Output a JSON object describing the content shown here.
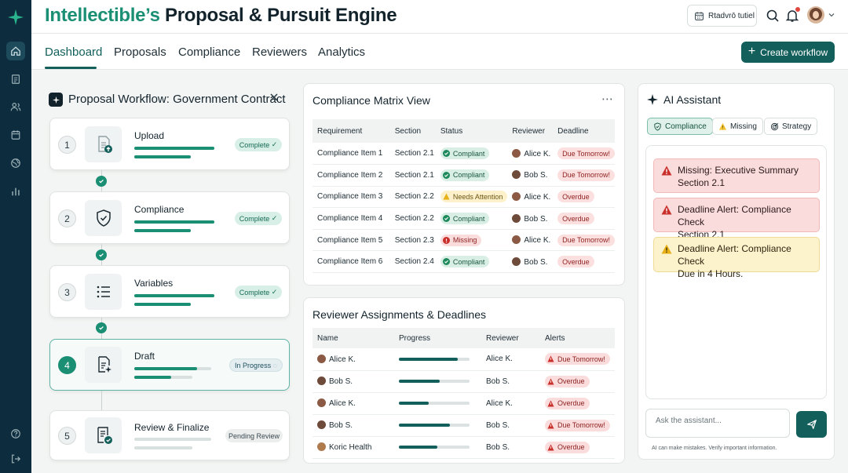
{
  "header": {
    "title_brand": "Intellectible’s",
    "title_rest": "Proposal & Pursuit Engine",
    "calendar_label": "Rtadvrō tutiel"
  },
  "tabs": [
    {
      "label": "Dashboard",
      "active": true
    },
    {
      "label": "Proposals",
      "active": false
    },
    {
      "label": "Compliance",
      "active": false
    },
    {
      "label": "Reviewers",
      "active": false
    },
    {
      "label": "Analytics",
      "active": false
    }
  ],
  "create_button": "Create workflow",
  "workflow": {
    "title": "Proposal Workflow: Government Contract",
    "steps": [
      {
        "number": "1",
        "label": "Upload",
        "status": "Complete",
        "progress": [
          0.85,
          0.6
        ],
        "icon": "upload-document-icon"
      },
      {
        "number": "2",
        "label": "Compliance",
        "status": "Complete",
        "progress": [
          0.85,
          0.6
        ],
        "icon": "shield-check-icon"
      },
      {
        "number": "3",
        "label": "Variables",
        "status": "Complete",
        "progress": [
          0.85,
          0.6
        ],
        "icon": "list-icon"
      },
      {
        "number": "4",
        "label": "Draft",
        "status": "In Progress",
        "progress": [
          0.8,
          0.6
        ],
        "icon": "document-edit-icon"
      },
      {
        "number": "5",
        "label": "Review & Finalize",
        "status": "Pending Review",
        "progress": [
          0,
          0
        ],
        "icon": "document-check-icon"
      }
    ]
  },
  "compliance_matrix": {
    "title": "Compliance Matrix View",
    "columns": [
      "Requirement",
      "Section",
      "Status",
      "Reviewer",
      "Deadline"
    ],
    "rows": [
      {
        "requirement": "Compliance Item 1",
        "section": "Section 2.1",
        "status": "Compliant",
        "reviewer": "Alice K.",
        "deadline": "Due Tomorrow!"
      },
      {
        "requirement": "Compliance Item 2",
        "section": "Section 2.1",
        "status": "Compliant",
        "reviewer": "Bob S.",
        "deadline": "Due Tomorrow!"
      },
      {
        "requirement": "Compliance Item 3",
        "section": "Section 2.2",
        "status": "Needs Attention",
        "reviewer": "Alice K.",
        "deadline": "Overdue"
      },
      {
        "requirement": "Compliance Item 4",
        "section": "Section 2.2",
        "status": "Compliant",
        "reviewer": "Bob S.",
        "deadline": "Overdue"
      },
      {
        "requirement": "Compliance Item 5",
        "section": "Section 2.3",
        "status": "Missing",
        "reviewer": "Alice K.",
        "deadline": "Due Tomorrow!"
      },
      {
        "requirement": "Compliance Item 6",
        "section": "Section 2.4",
        "status": "Compliant",
        "reviewer": "Bob S.",
        "deadline": "Overdue"
      }
    ]
  },
  "reviewers": {
    "title": "Reviewer Assignments & Deadlines",
    "columns": [
      "Name",
      "Progress",
      "Reviewer",
      "Alerts"
    ],
    "rows": [
      {
        "name": "Alice K.",
        "progress": 0.83,
        "reviewer": "Alice K.",
        "alert": "Due Tomorrow!"
      },
      {
        "name": "Bob S.",
        "progress": 0.58,
        "reviewer": "Bob S.",
        "alert": "Overdue"
      },
      {
        "name": "Alice K.",
        "progress": 0.42,
        "reviewer": "Alice K.",
        "alert": "Overdue"
      },
      {
        "name": "Bob S.",
        "progress": 0.72,
        "reviewer": "Bob S.",
        "alert": "Due Tomorrow!"
      },
      {
        "name": "Koric Health",
        "progress": 0.54,
        "reviewer": "Bob S.",
        "alert": "Overdue"
      }
    ]
  },
  "assistant": {
    "title": "AI Assistant",
    "chips": [
      "Compliance",
      "Missing",
      "Strategy"
    ],
    "alerts": [
      {
        "line1": "Missing: Executive Summary",
        "line2": "Section 2.1",
        "tone": "red"
      },
      {
        "line1": "Deadline Alert: Compliance Check",
        "line2": "Section 2.1",
        "tone": "red"
      },
      {
        "line1": "Deadline Alert: Compliance Check",
        "line2": "Due in 4 Hours.",
        "tone": "yellow"
      }
    ],
    "input_placeholder": "Ask the assistant...",
    "disclaimer": "AI can make mistakes. Verify important information."
  },
  "colors": {
    "accent": "#135f5b",
    "brand": "#1a8f74",
    "rail": "#0d2d3f"
  }
}
